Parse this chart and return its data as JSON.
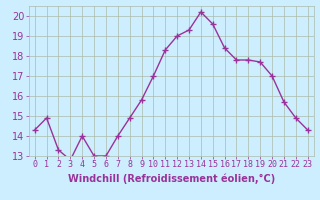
{
  "x": [
    0,
    1,
    2,
    3,
    4,
    5,
    6,
    7,
    8,
    9,
    10,
    11,
    12,
    13,
    14,
    15,
    16,
    17,
    18,
    19,
    20,
    21,
    22,
    23
  ],
  "y": [
    14.3,
    14.9,
    13.3,
    12.8,
    14.0,
    13.0,
    13.0,
    14.0,
    14.9,
    15.8,
    17.0,
    18.3,
    19.0,
    19.3,
    20.2,
    19.6,
    18.4,
    17.8,
    17.8,
    17.7,
    17.0,
    15.7,
    14.9,
    14.3
  ],
  "line_color": "#993399",
  "marker": "+",
  "marker_size": 4,
  "background_color": "#cceeff",
  "grid_color": "#aabbaa",
  "xlabel": "Windchill (Refroidissement éolien,°C)",
  "ylabel": "",
  "ylim": [
    13,
    20.5
  ],
  "xlim": [
    -0.5,
    23.5
  ],
  "yticks": [
    13,
    14,
    15,
    16,
    17,
    18,
    19,
    20
  ],
  "xticks": [
    0,
    1,
    2,
    3,
    4,
    5,
    6,
    7,
    8,
    9,
    10,
    11,
    12,
    13,
    14,
    15,
    16,
    17,
    18,
    19,
    20,
    21,
    22,
    23
  ],
  "font_color": "#993399",
  "tick_fontsize": 7,
  "xlabel_fontsize": 7,
  "line_width": 1.0,
  "marker_color": "#993399"
}
